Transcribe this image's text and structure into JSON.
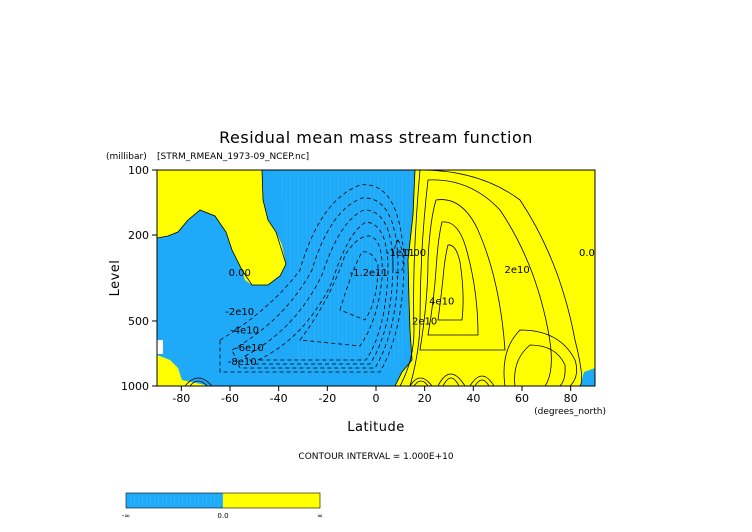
{
  "chart_data": {
    "type": "heatmap",
    "title": "Residual mean mass stream function",
    "subtitle": "[STRM_RMEAN_1973-09_NCEP.nc]",
    "xlabel": "Latitude",
    "xunits": "(degrees_north)",
    "ylabel": "Level",
    "yunits": "(millibar)",
    "xlim": [
      -90,
      90
    ],
    "ylim": [
      1000,
      100
    ],
    "yscale": "log",
    "xticks": [
      "-80",
      "-60",
      "-40",
      "-20",
      "0",
      "20",
      "40",
      "60",
      "80"
    ],
    "xtick_values": [
      -80,
      -60,
      -40,
      -20,
      0,
      20,
      40,
      60,
      80
    ],
    "yticks": [
      "100",
      "200",
      "500",
      "1000"
    ],
    "ytick_values": [
      100,
      200,
      500,
      1000
    ],
    "contour_interval_text": "CONTOUR INTERVAL = 1.000E+10",
    "colors": {
      "negative": "#1EAAF8",
      "positive": "#FFFF00",
      "contour": "#000000"
    },
    "contour_labels": [
      {
        "text": "0.00",
        "x": -56,
        "level": 310
      },
      {
        "text": "-2e10",
        "x": -56,
        "level": 470
      },
      {
        "text": "-4e10",
        "x": -54,
        "level": 570
      },
      {
        "text": "-6e10",
        "x": -52,
        "level": 690
      },
      {
        "text": "-8e10",
        "x": -55,
        "level": 800
      },
      {
        "text": "-1.2e11",
        "x": -3,
        "level": 310
      },
      {
        "text": "-1e11",
        "x": 10,
        "level": 250
      },
      {
        "text": "0.00",
        "x": 16,
        "level": 250
      },
      {
        "text": "2e10",
        "x": 20,
        "level": 520
      },
      {
        "text": "4e10",
        "x": 27,
        "level": 420
      },
      {
        "text": "2e10",
        "x": 58,
        "level": 300
      },
      {
        "text": "0.00",
        "x": 88,
        "level": 250
      }
    ],
    "colorbar": {
      "ticks": [
        "-∞",
        "0.0",
        "∞"
      ]
    }
  }
}
